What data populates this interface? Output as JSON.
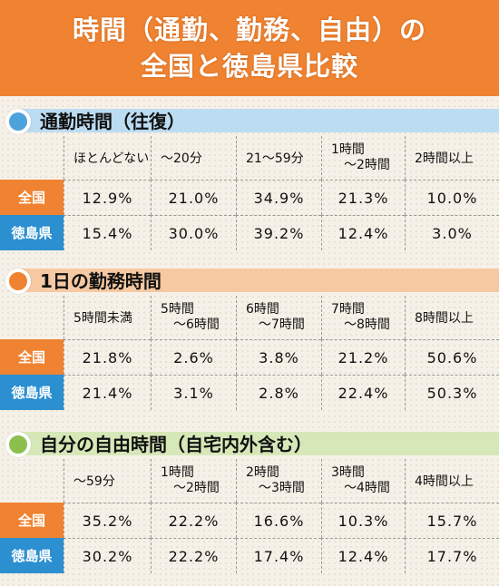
{
  "title": {
    "line1": "時間（通勤、勤務、自由）の",
    "line2": "全国と徳島県比較"
  },
  "colors": {
    "title_bg": "#ef8331",
    "zenkoku": "#ef8331",
    "tokushima": "#2b8fd0",
    "commute_bar": "#bcdcf2",
    "commute_circle": "#4ea2dc",
    "work_bar": "#f6c9a2",
    "work_circle": "#ef8331",
    "free_bar": "#d6e8b8",
    "free_circle": "#8cbf4e"
  },
  "sections": [
    {
      "heading": "通勤時間（往復）",
      "headers": [
        "ほとんどない",
        "～20分",
        "21～59分",
        "1時間\n　～2時間",
        "2時間以上"
      ],
      "rows": [
        {
          "label": "全国",
          "values": [
            "12.9%",
            "21.0%",
            "34.9%",
            "21.3%",
            "10.0%"
          ]
        },
        {
          "label": "徳島県",
          "values": [
            "15.4%",
            "30.0%",
            "39.2%",
            "12.4%",
            "3.0%"
          ]
        }
      ]
    },
    {
      "heading": "1日の勤務時間",
      "headers": [
        "5時間未満",
        "5時間\n　～6時間",
        "6時間\n　～7時間",
        "7時間\n　～8時間",
        "8時間以上"
      ],
      "rows": [
        {
          "label": "全国",
          "values": [
            "21.8%",
            "2.6%",
            "3.8%",
            "21.2%",
            "50.6%"
          ]
        },
        {
          "label": "徳島県",
          "values": [
            "21.4%",
            "3.1%",
            "2.8%",
            "22.4%",
            "50.3%"
          ]
        }
      ]
    },
    {
      "heading": "自分の自由時間（自宅内外含む）",
      "headers": [
        "～59分",
        "1時間\n　～2時間",
        "2時間\n　～3時間",
        "3時間\n　～4時間",
        "4時間以上"
      ],
      "rows": [
        {
          "label": "全国",
          "values": [
            "35.2%",
            "22.2%",
            "16.6%",
            "10.3%",
            "15.7%"
          ]
        },
        {
          "label": "徳島県",
          "values": [
            "30.2%",
            "22.2%",
            "17.4%",
            "12.4%",
            "17.7%"
          ]
        }
      ]
    }
  ]
}
